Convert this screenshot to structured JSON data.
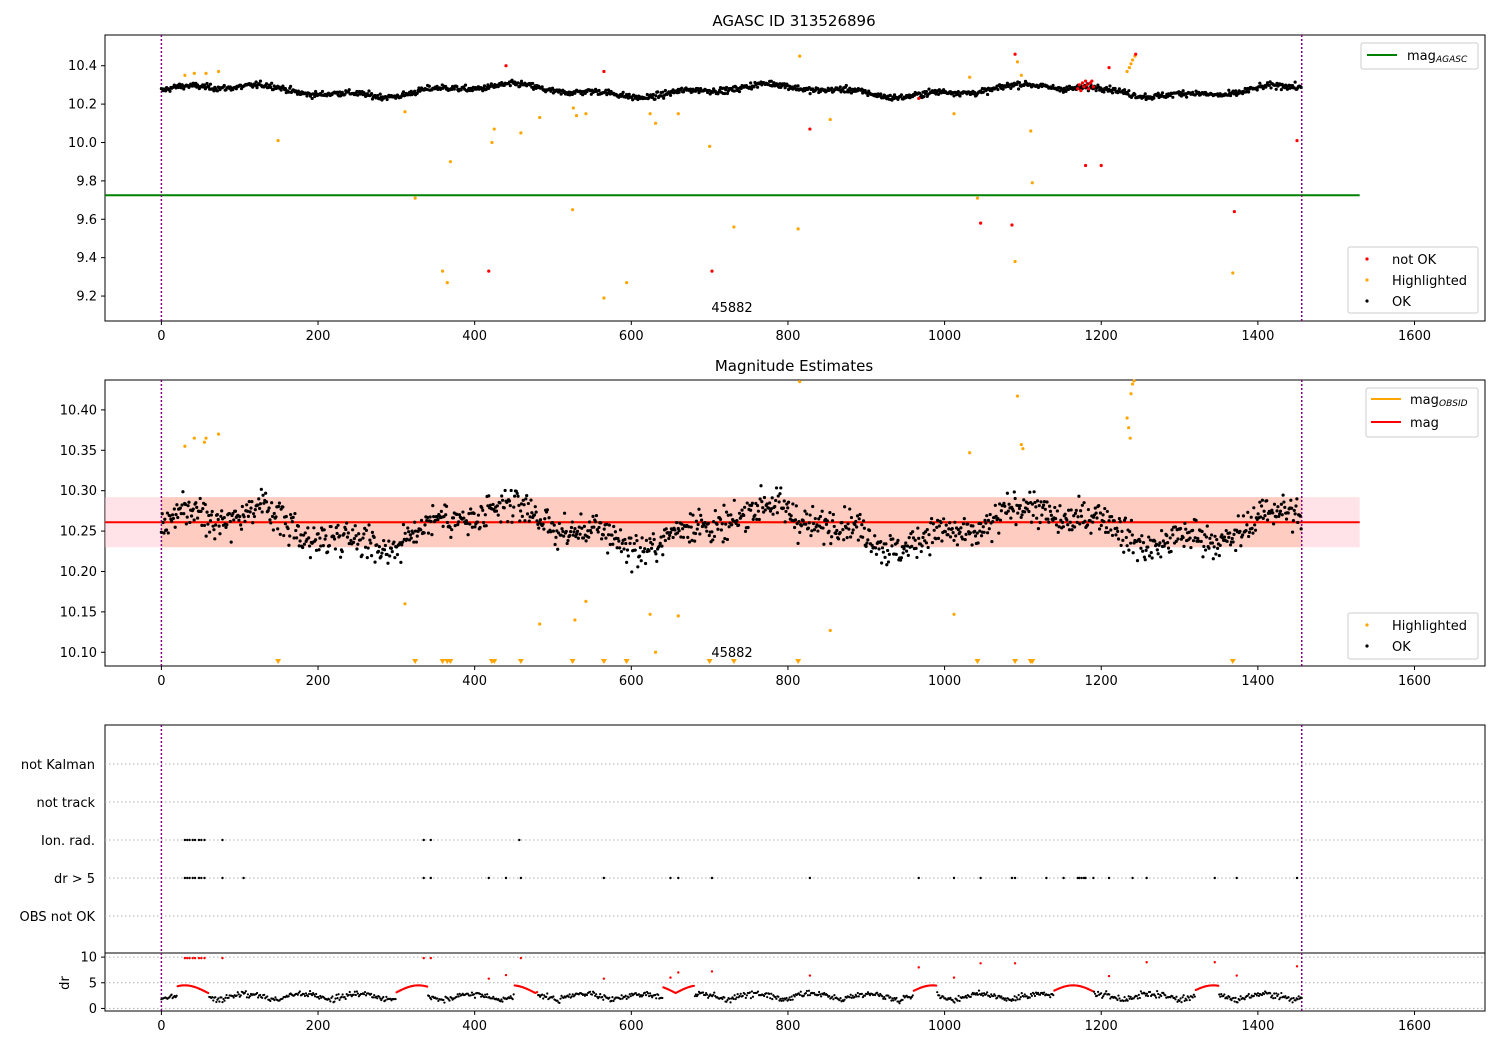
{
  "colors": {
    "ok": "#000000",
    "highlighted": "#ffa500",
    "not_ok": "#ff0000",
    "agasc_line": "#008000",
    "mag_line": "#ff0000",
    "obsid_line": "#ffa500",
    "mag_band": "#ffc0cb",
    "obsid_band": "#ffa07a",
    "boundary": "#800080",
    "grid": "#b0b0b0"
  },
  "chart_data": [
    {
      "type": "scatter",
      "title": "AGASC ID 313526896",
      "xlim": [
        -72,
        1690
      ],
      "ylim": [
        9.07,
        10.56
      ],
      "xticks": [
        0,
        200,
        400,
        600,
        800,
        1000,
        1200,
        1400,
        1600
      ],
      "yticks": [
        9.2,
        9.4,
        9.6,
        9.8,
        10.0,
        10.2,
        10.4
      ],
      "ytick_labels": [
        "9.2",
        "9.4",
        "9.6",
        "9.8",
        "10.0",
        "10.2",
        "10.4"
      ],
      "vlines": [
        0,
        1456
      ],
      "annotations": [
        {
          "text": "45882",
          "x": 727,
          "y": 9.12
        }
      ],
      "hlines": [
        {
          "name": "mag",
          "subscript": "AGASC",
          "y": 9.725,
          "x": [
            -72,
            1530
          ]
        }
      ],
      "legend_top": {
        "position": "top-right",
        "entries": [
          {
            "label": "mag",
            "subscript": "AGASC"
          }
        ]
      },
      "legend_bottom": {
        "position": "lower-right",
        "entries": [
          "not OK",
          "Highlighted",
          "OK"
        ]
      },
      "ok_baseline": {
        "y0": 10.27,
        "spread": 0.025,
        "x_range": [
          0,
          1456
        ]
      },
      "highlighted_points": [
        [
          30,
          10.35
        ],
        [
          42,
          10.36
        ],
        [
          57,
          10.36
        ],
        [
          73,
          10.37
        ],
        [
          149,
          10.01
        ],
        [
          311,
          10.16
        ],
        [
          324,
          9.71
        ],
        [
          359,
          9.33
        ],
        [
          365,
          9.27
        ],
        [
          369,
          9.9
        ],
        [
          422,
          10.0
        ],
        [
          425,
          10.07
        ],
        [
          459,
          10.05
        ],
        [
          483,
          10.13
        ],
        [
          525,
          9.65
        ],
        [
          526,
          10.18
        ],
        [
          530,
          10.14
        ],
        [
          542,
          10.15
        ],
        [
          565,
          9.19
        ],
        [
          594,
          9.27
        ],
        [
          624,
          10.15
        ],
        [
          631,
          10.1
        ],
        [
          660,
          10.15
        ],
        [
          700,
          9.98
        ],
        [
          731,
          9.56
        ],
        [
          813,
          9.55
        ],
        [
          815,
          10.45
        ],
        [
          854,
          10.12
        ],
        [
          1012,
          10.15
        ],
        [
          1032,
          10.34
        ],
        [
          1042,
          9.71
        ],
        [
          1090,
          9.38
        ],
        [
          1093,
          10.42
        ],
        [
          1098,
          10.35
        ],
        [
          1110,
          10.06
        ],
        [
          1112,
          9.79
        ],
        [
          1233,
          10.37
        ],
        [
          1236,
          10.39
        ],
        [
          1238,
          10.41
        ],
        [
          1240,
          10.43
        ],
        [
          1243,
          10.45
        ],
        [
          1368,
          9.32
        ]
      ],
      "not_ok_points": [
        [
          418,
          9.33
        ],
        [
          440,
          10.4
        ],
        [
          565,
          10.37
        ],
        [
          703,
          9.33
        ],
        [
          828,
          10.07
        ],
        [
          967,
          10.23
        ],
        [
          1046,
          9.58
        ],
        [
          1086,
          9.57
        ],
        [
          1090,
          10.46
        ],
        [
          1180,
          9.88
        ],
        [
          1200,
          9.88
        ],
        [
          1210,
          10.39
        ],
        [
          1244,
          10.46
        ],
        [
          1370,
          9.64
        ],
        [
          1450,
          10.01
        ],
        [
          1170,
          10.28
        ],
        [
          1172,
          10.3
        ],
        [
          1174,
          10.27
        ],
        [
          1176,
          10.31
        ],
        [
          1178,
          10.29
        ],
        [
          1180,
          10.32
        ],
        [
          1182,
          10.3
        ],
        [
          1184,
          10.28
        ],
        [
          1186,
          10.31
        ],
        [
          1188,
          10.32
        ],
        [
          1190,
          10.29
        ]
      ]
    },
    {
      "type": "scatter",
      "title": "Magnitude Estimates",
      "xlim": [
        -72,
        1690
      ],
      "ylim": [
        10.083,
        10.437
      ],
      "xticks": [
        0,
        200,
        400,
        600,
        800,
        1000,
        1200,
        1400,
        1600
      ],
      "yticks": [
        10.1,
        10.15,
        10.2,
        10.25,
        10.3,
        10.35,
        10.4
      ],
      "ytick_labels": [
        "10.10",
        "10.15",
        "10.20",
        "10.25",
        "10.30",
        "10.35",
        "10.40"
      ],
      "vlines": [
        0,
        1456
      ],
      "annotations": [
        {
          "text": "45882",
          "x": 727,
          "y": 10.095
        }
      ],
      "mag": {
        "value": 10.261,
        "band": [
          10.23,
          10.292
        ],
        "x": [
          -72,
          1530
        ]
      },
      "mag_obsid": {
        "value": 10.261,
        "band": [
          10.23,
          10.292
        ],
        "x": [
          0,
          1456
        ]
      },
      "legend_top": {
        "position": "top-right",
        "entries": [
          {
            "label": "mag",
            "subscript": "OBSID"
          },
          {
            "label": "mag",
            "subscript": ""
          }
        ]
      },
      "legend_bottom": {
        "position": "lower-right",
        "entries": [
          "Highlighted",
          "OK"
        ]
      },
      "ok_baseline": {
        "y0": 10.255,
        "spread": 0.026,
        "x_range": [
          0,
          1456
        ]
      },
      "highlighted_points": [
        [
          30,
          10.355
        ],
        [
          42,
          10.365
        ],
        [
          55,
          10.36
        ],
        [
          57,
          10.365
        ],
        [
          73,
          10.37
        ],
        [
          311,
          10.16
        ],
        [
          542,
          10.163
        ],
        [
          528,
          10.14
        ],
        [
          483,
          10.135
        ],
        [
          624,
          10.147
        ],
        [
          631,
          10.1
        ],
        [
          660,
          10.145
        ],
        [
          815,
          10.435
        ],
        [
          854,
          10.127
        ],
        [
          1012,
          10.147
        ],
        [
          1032,
          10.347
        ],
        [
          1093,
          10.417
        ],
        [
          1098,
          10.357
        ],
        [
          1100,
          10.352
        ],
        [
          1233,
          10.39
        ],
        [
          1235,
          10.378
        ],
        [
          1237,
          10.365
        ],
        [
          1238,
          10.42
        ],
        [
          1240,
          10.432
        ],
        [
          1242,
          10.436
        ]
      ],
      "below_markers_x": [
        149,
        324,
        359,
        365,
        369,
        422,
        425,
        459,
        525,
        565,
        594,
        700,
        731,
        813,
        1042,
        1090,
        1110,
        1112,
        1368
      ]
    },
    {
      "type": "scatter",
      "xlim": [
        -72,
        1690
      ],
      "categories": [
        "not Kalman",
        "not track",
        "Ion. rad.",
        "dr > 5",
        "OBS not OK"
      ],
      "vlines": [
        0,
        1456
      ],
      "flags": {
        "Ion. rad.": [
          30,
          33,
          36,
          40,
          43,
          48,
          51,
          55,
          78,
          335,
          344,
          457
        ],
        "dr > 5": [
          30,
          33,
          36,
          40,
          43,
          48,
          51,
          55,
          78,
          105,
          335,
          344,
          418,
          440,
          459,
          565,
          650,
          660,
          703,
          828,
          967,
          1012,
          1046,
          1086,
          1090,
          1130,
          1152,
          1170,
          1172,
          1175,
          1178,
          1180,
          1190,
          1210,
          1240,
          1258,
          1345,
          1373,
          1450
        ]
      }
    },
    {
      "type": "scatter",
      "ylabel": "dr",
      "xlim": [
        -72,
        1690
      ],
      "ylim": [
        -0.5,
        10.8
      ],
      "yticks": [
        0,
        5,
        10
      ],
      "ytick_labels": [
        "0",
        "5",
        "10"
      ],
      "xticks": [
        0,
        200,
        400,
        600,
        800,
        1000,
        1200,
        1400,
        1600
      ],
      "vlines": [
        0,
        1456
      ],
      "red_spikes": [
        [
          30,
          9.8
        ],
        [
          33,
          9.8
        ],
        [
          36,
          9.8
        ],
        [
          40,
          9.8
        ],
        [
          43,
          9.8
        ],
        [
          48,
          9.8
        ],
        [
          51,
          9.8
        ],
        [
          55,
          9.8
        ],
        [
          78,
          9.8
        ],
        [
          335,
          9.8
        ],
        [
          344,
          9.8
        ],
        [
          418,
          5.8
        ],
        [
          440,
          6.5
        ],
        [
          459,
          9.8
        ],
        [
          565,
          5.8
        ],
        [
          650,
          6.0
        ],
        [
          660,
          7.0
        ],
        [
          703,
          7.2
        ],
        [
          828,
          6.4
        ],
        [
          967,
          8.0
        ],
        [
          1012,
          6.0
        ],
        [
          1046,
          8.8
        ],
        [
          1090,
          8.8
        ],
        [
          1210,
          6.3
        ],
        [
          1258,
          9.0
        ],
        [
          1345,
          9.0
        ],
        [
          1373,
          6.4
        ],
        [
          1450,
          8.2
        ]
      ]
    }
  ],
  "labels": {
    "title1": "AGASC ID 313526896",
    "title2": "Magnitude Estimates",
    "annotation": "45882",
    "ylabel4": "dr",
    "flag_not_kalman": "not Kalman",
    "flag_not_track": "not track",
    "flag_ion_rad": "Ion. rad.",
    "flag_dr5": "dr > 5",
    "flag_obs_not_ok": "OBS not OK",
    "legend_mag": "mag",
    "legend_sub_agasc": "AGASC",
    "legend_sub_obsid": "OBSID",
    "legend_not_ok": "not OK",
    "legend_highlighted": "Highlighted",
    "legend_ok": "OK"
  }
}
